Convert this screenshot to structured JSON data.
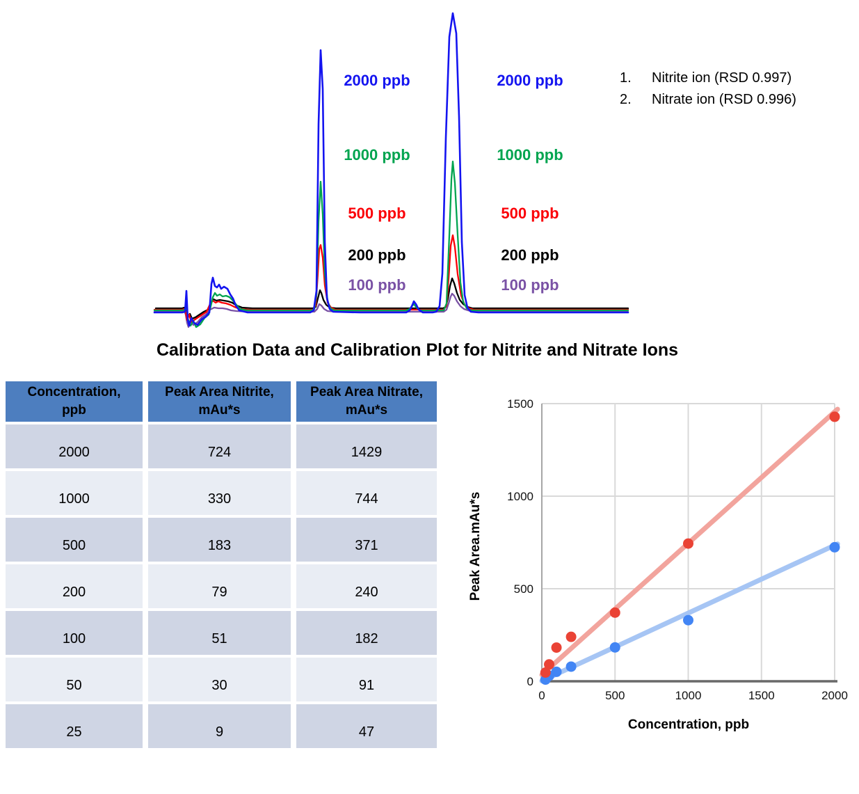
{
  "title": "Calibration Data and Calibration Plot for Nitrite and Nitrate Ions",
  "chromatogram": {
    "concentration_labels": [
      {
        "text": "2000 ppb",
        "color": "#1414f0"
      },
      {
        "text": "1000 ppb",
        "color": "#00a44f"
      },
      {
        "text": "500 ppb",
        "color": "#fb0007"
      },
      {
        "text": "200 ppb",
        "color": "#000000"
      },
      {
        "text": "100 ppb",
        "color": "#7a52a5"
      }
    ],
    "legend": [
      {
        "num": "1.",
        "text": "Nitrite ion (RSD 0.997)"
      },
      {
        "num": "2.",
        "text": "Nitrate ion (RSD 0.996)"
      }
    ],
    "traces": [
      {
        "name": "100 ppb",
        "color": "#7a52a5",
        "width": 2.3,
        "points": [
          [
            4,
            440
          ],
          [
            44,
            440
          ],
          [
            47,
            439
          ],
          [
            49,
            444
          ],
          [
            51,
            456
          ],
          [
            53,
            462
          ],
          [
            56,
            453
          ],
          [
            60,
            459
          ],
          [
            66,
            455
          ],
          [
            72,
            448
          ],
          [
            78,
            444
          ],
          [
            84,
            437
          ],
          [
            90,
            434
          ],
          [
            96,
            435
          ],
          [
            102,
            435
          ],
          [
            108,
            436
          ],
          [
            114,
            438
          ],
          [
            122,
            439
          ],
          [
            140,
            440
          ],
          [
            234,
            440
          ],
          [
            238,
            436
          ],
          [
            241,
            429
          ],
          [
            244,
            431
          ],
          [
            248,
            436
          ],
          [
            253,
            439
          ],
          [
            265,
            440
          ],
          [
            330,
            440
          ],
          [
            420,
            440
          ],
          [
            424,
            437
          ],
          [
            427,
            428
          ],
          [
            430,
            418
          ],
          [
            432,
            414
          ],
          [
            435,
            417
          ],
          [
            439,
            425
          ],
          [
            444,
            432
          ],
          [
            449,
            436
          ],
          [
            455,
            438
          ],
          [
            462,
            440
          ],
          [
            685,
            440
          ]
        ]
      },
      {
        "name": "200 ppb",
        "color": "#000000",
        "width": 2.3,
        "points": [
          [
            6,
            435
          ],
          [
            44,
            435
          ],
          [
            47,
            434
          ],
          [
            49,
            438
          ],
          [
            52,
            446
          ],
          [
            55,
            443
          ],
          [
            58,
            450
          ],
          [
            63,
            448
          ],
          [
            69,
            444
          ],
          [
            75,
            440
          ],
          [
            81,
            437
          ],
          [
            85,
            427
          ],
          [
            89,
            422
          ],
          [
            93,
            424
          ],
          [
            98,
            423
          ],
          [
            104,
            424
          ],
          [
            110,
            425
          ],
          [
            116,
            427
          ],
          [
            122,
            431
          ],
          [
            130,
            434
          ],
          [
            145,
            435
          ],
          [
            232,
            435
          ],
          [
            236,
            433
          ],
          [
            239,
            421
          ],
          [
            242,
            409
          ],
          [
            244,
            413
          ],
          [
            247,
            423
          ],
          [
            251,
            430
          ],
          [
            256,
            434
          ],
          [
            265,
            435
          ],
          [
            330,
            435
          ],
          [
            419,
            435
          ],
          [
            423,
            433
          ],
          [
            426,
            421
          ],
          [
            429,
            403
          ],
          [
            432,
            392
          ],
          [
            435,
            399
          ],
          [
            439,
            413
          ],
          [
            443,
            423
          ],
          [
            448,
            429
          ],
          [
            454,
            433
          ],
          [
            461,
            435
          ],
          [
            685,
            435
          ]
        ]
      },
      {
        "name": "500 ppb",
        "color": "#fb0007",
        "width": 2.3,
        "points": [
          [
            4,
            437
          ],
          [
            44,
            437
          ],
          [
            47,
            436
          ],
          [
            49,
            440
          ],
          [
            51,
            452
          ],
          [
            54,
            444
          ],
          [
            57,
            455
          ],
          [
            61,
            452
          ],
          [
            67,
            448
          ],
          [
            73,
            444
          ],
          [
            79,
            440
          ],
          [
            84,
            429
          ],
          [
            88,
            424
          ],
          [
            92,
            427
          ],
          [
            96,
            425
          ],
          [
            101,
            427
          ],
          [
            107,
            428
          ],
          [
            113,
            430
          ],
          [
            119,
            433
          ],
          [
            127,
            436
          ],
          [
            140,
            437
          ],
          [
            232,
            437
          ],
          [
            236,
            431
          ],
          [
            239,
            385
          ],
          [
            241,
            350
          ],
          [
            243,
            344
          ],
          [
            246,
            362
          ],
          [
            249,
            402
          ],
          [
            253,
            427
          ],
          [
            258,
            434
          ],
          [
            264,
            437
          ],
          [
            330,
            437
          ],
          [
            420,
            437
          ],
          [
            424,
            431
          ],
          [
            427,
            392
          ],
          [
            430,
            345
          ],
          [
            433,
            330
          ],
          [
            436,
            347
          ],
          [
            440,
            386
          ],
          [
            445,
            417
          ],
          [
            450,
            430
          ],
          [
            456,
            435
          ],
          [
            463,
            437
          ],
          [
            685,
            437
          ]
        ]
      },
      {
        "name": "1000 ppb",
        "color": "#00a44f",
        "width": 2.3,
        "points": [
          [
            4,
            438
          ],
          [
            44,
            438
          ],
          [
            48,
            437
          ],
          [
            50,
            428
          ],
          [
            52,
            450
          ],
          [
            56,
            460
          ],
          [
            60,
            453
          ],
          [
            64,
            462
          ],
          [
            70,
            458
          ],
          [
            76,
            449
          ],
          [
            82,
            444
          ],
          [
            86,
            428
          ],
          [
            88,
            419
          ],
          [
            91,
            413
          ],
          [
            94,
            417
          ],
          [
            98,
            415
          ],
          [
            102,
            418
          ],
          [
            107,
            417
          ],
          [
            112,
            419
          ],
          [
            116,
            423
          ],
          [
            121,
            429
          ],
          [
            127,
            436
          ],
          [
            137,
            438
          ],
          [
            200,
            438
          ],
          [
            230,
            438
          ],
          [
            234,
            436
          ],
          [
            237,
            415
          ],
          [
            240,
            310
          ],
          [
            243,
            253
          ],
          [
            246,
            300
          ],
          [
            249,
            385
          ],
          [
            253,
            425
          ],
          [
            257,
            435
          ],
          [
            263,
            438
          ],
          [
            300,
            438
          ],
          [
            366,
            438
          ],
          [
            371,
            436
          ],
          [
            375,
            431
          ],
          [
            377,
            429
          ],
          [
            381,
            434
          ],
          [
            386,
            438
          ],
          [
            404,
            438
          ],
          [
            420,
            438
          ],
          [
            424,
            428
          ],
          [
            428,
            330
          ],
          [
            431,
            250
          ],
          [
            433,
            224
          ],
          [
            436,
            255
          ],
          [
            440,
            330
          ],
          [
            444,
            398
          ],
          [
            448,
            426
          ],
          [
            453,
            435
          ],
          [
            460,
            438
          ],
          [
            685,
            438
          ]
        ]
      },
      {
        "name": "2000 ppb",
        "color": "#1414f0",
        "width": 2.6,
        "points": [
          [
            4,
            441
          ],
          [
            44,
            441
          ],
          [
            48,
            440
          ],
          [
            50,
            410
          ],
          [
            52,
            452
          ],
          [
            54,
            460
          ],
          [
            57,
            449
          ],
          [
            61,
            456
          ],
          [
            66,
            459
          ],
          [
            72,
            451
          ],
          [
            78,
            447
          ],
          [
            83,
            441
          ],
          [
            86,
            400
          ],
          [
            88,
            391
          ],
          [
            91,
            403
          ],
          [
            94,
            405
          ],
          [
            97,
            401
          ],
          [
            100,
            407
          ],
          [
            104,
            404
          ],
          [
            109,
            407
          ],
          [
            113,
            415
          ],
          [
            117,
            421
          ],
          [
            121,
            431
          ],
          [
            126,
            438
          ],
          [
            138,
            441
          ],
          [
            200,
            441
          ],
          [
            228,
            441
          ],
          [
            233,
            438
          ],
          [
            237,
            410
          ],
          [
            240,
            170
          ],
          [
            243,
            64
          ],
          [
            246,
            120
          ],
          [
            249,
            340
          ],
          [
            252,
            420
          ],
          [
            256,
            436
          ],
          [
            261,
            440
          ],
          [
            300,
            441
          ],
          [
            355,
            441
          ],
          [
            366,
            441
          ],
          [
            371,
            438
          ],
          [
            375,
            430
          ],
          [
            377,
            425
          ],
          [
            380,
            429
          ],
          [
            384,
            437
          ],
          [
            390,
            441
          ],
          [
            404,
            441
          ],
          [
            409,
            440
          ],
          [
            414,
            432
          ],
          [
            418,
            385
          ],
          [
            423,
            190
          ],
          [
            428,
            45
          ],
          [
            433,
            11
          ],
          [
            438,
            40
          ],
          [
            442,
            160
          ],
          [
            446,
            340
          ],
          [
            450,
            416
          ],
          [
            454,
            434
          ],
          [
            459,
            440
          ],
          [
            470,
            441
          ],
          [
            685,
            441
          ]
        ]
      }
    ]
  },
  "table": {
    "headers": [
      {
        "line1": "Concentration,",
        "line2": "ppb"
      },
      {
        "line1": "Peak Area Nitrite,",
        "line2": "mAu*s"
      },
      {
        "line1": "Peak Area Nitrate,",
        "line2": "mAu*s"
      }
    ],
    "rows": [
      [
        "2000",
        "724",
        "1429"
      ],
      [
        "1000",
        "330",
        "744"
      ],
      [
        "500",
        "183",
        "371"
      ],
      [
        "200",
        "79",
        "240"
      ],
      [
        "100",
        "51",
        "182"
      ],
      [
        "50",
        "30",
        "91"
      ],
      [
        "25",
        "9",
        "47"
      ]
    ]
  },
  "chart_data": {
    "type": "scatter",
    "title": "",
    "xlabel": "Concentration, ppb",
    "ylabel": "Peak Area.mAu*s",
    "xlim": [
      0,
      2000
    ],
    "ylim": [
      0,
      1500
    ],
    "xticks": [
      0,
      500,
      1000,
      1500,
      2000
    ],
    "yticks": [
      0,
      500,
      1000,
      1500
    ],
    "grid": true,
    "legend_position": "none",
    "series": [
      {
        "name": "Peak Area Nitrite",
        "color": "#4285f4",
        "trend_color": "#a6c5f4",
        "x": [
          25,
          50,
          100,
          200,
          500,
          1000,
          2000
        ],
        "y": [
          9,
          30,
          51,
          79,
          183,
          330,
          724
        ],
        "trend": [
          [
            0,
            2
          ],
          [
            2020,
            742
          ]
        ]
      },
      {
        "name": "Peak Area Nitrate",
        "color": "#ea4335",
        "trend_color": "#f2a49d",
        "x": [
          25,
          50,
          100,
          200,
          500,
          1000,
          2000
        ],
        "y": [
          47,
          91,
          182,
          240,
          371,
          744,
          1429
        ],
        "trend": [
          [
            0,
            35
          ],
          [
            2020,
            1470
          ]
        ]
      }
    ]
  }
}
